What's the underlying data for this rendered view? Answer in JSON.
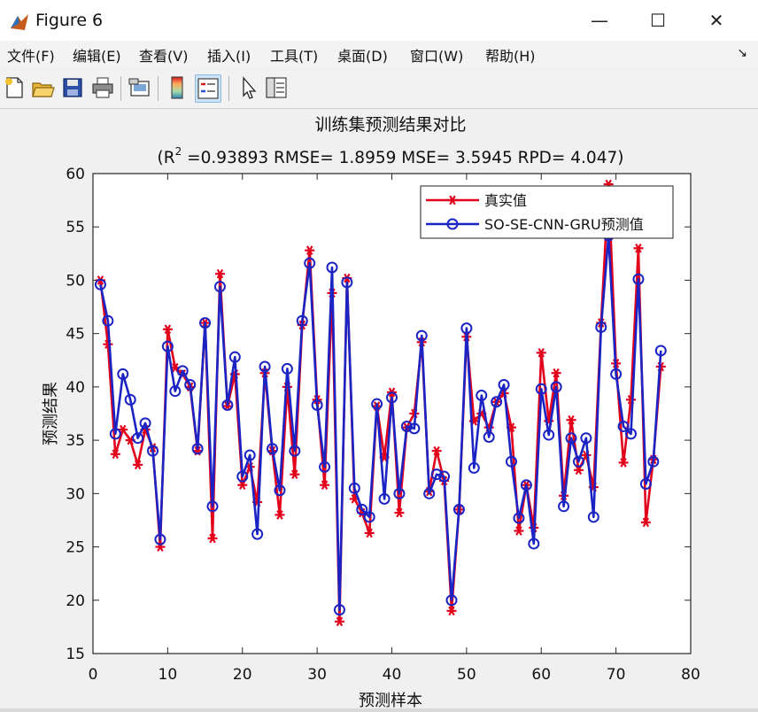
{
  "window": {
    "title": "Figure 6"
  },
  "menu": [
    "文件(F)",
    "编辑(E)",
    "查看(V)",
    "插入(I)",
    "工具(T)",
    "桌面(D)",
    "窗口(W)",
    "帮助(H)"
  ],
  "toolbar": [
    "new-figure-icon",
    "open-file-icon",
    "save-icon",
    "print-icon",
    "link-plot-icon",
    "colorbar-icon",
    "legend-icon",
    "pointer-icon",
    "property-inspector-icon"
  ],
  "chart_data": {
    "type": "line",
    "title": "训练集预测结果对比",
    "subtitle_prefix": "(R",
    "subtitle_sup": "2",
    "subtitle_rest": " =0.93893 RMSE= 1.8959 MSE= 3.5945 RPD= 4.047)",
    "xlabel": "预测样本",
    "ylabel": "预测结果",
    "xlim": [
      0,
      80
    ],
    "ylim": [
      15,
      60
    ],
    "xticks": [
      0,
      10,
      20,
      30,
      40,
      50,
      60,
      70,
      80
    ],
    "yticks": [
      15,
      20,
      25,
      30,
      35,
      40,
      45,
      50,
      55,
      60
    ],
    "legend_position": "top-right",
    "x": [
      1,
      2,
      3,
      4,
      5,
      6,
      7,
      8,
      9,
      10,
      11,
      12,
      13,
      14,
      15,
      16,
      17,
      18,
      19,
      20,
      21,
      22,
      23,
      24,
      25,
      26,
      27,
      28,
      29,
      30,
      31,
      32,
      33,
      34,
      35,
      36,
      37,
      38,
      39,
      40,
      41,
      42,
      43,
      44,
      45,
      46,
      47,
      48,
      49,
      50,
      51,
      52,
      53,
      54,
      55,
      56,
      57,
      58,
      59,
      60,
      61,
      62,
      63,
      64,
      65,
      66,
      67,
      68,
      69,
      70,
      71,
      72,
      73,
      74,
      75,
      76
    ],
    "series": [
      {
        "name": "真实值",
        "color": "#e3001b",
        "marker": "asterisk",
        "values": [
          50.0,
          44.0,
          33.7,
          36.0,
          35.0,
          32.7,
          36.0,
          34.3,
          25.0,
          45.4,
          41.8,
          41.2,
          40.0,
          34.0,
          46.0,
          25.8,
          50.6,
          38.2,
          41.2,
          30.8,
          32.5,
          29.2,
          41.3,
          34.0,
          28.0,
          40.0,
          31.8,
          45.8,
          52.8,
          38.8,
          30.8,
          48.8,
          18.0,
          50.2,
          29.5,
          28.2,
          26.3,
          38.2,
          33.4,
          39.5,
          28.2,
          36.2,
          37.5,
          44.2,
          30.2,
          34.0,
          31.2,
          19.0,
          28.5,
          44.7,
          36.8,
          37.5,
          36.2,
          38.6,
          39.4,
          36.2,
          26.5,
          30.8,
          26.8,
          43.2,
          36.8,
          41.3,
          29.8,
          36.9,
          32.2,
          33.6,
          30.6,
          46.0,
          59.0,
          42.2,
          32.9,
          38.8,
          53.0,
          27.3,
          33.2,
          41.9
        ]
      },
      {
        "name": "SO-SE-CNN-GRU预测值",
        "color": "#1a23c4",
        "marker": "circle",
        "values": [
          49.6,
          46.2,
          35.6,
          41.2,
          38.8,
          35.2,
          36.6,
          34.0,
          25.7,
          43.8,
          39.6,
          41.5,
          40.2,
          34.2,
          46.0,
          28.8,
          49.4,
          38.3,
          42.8,
          31.6,
          33.6,
          26.2,
          41.9,
          34.2,
          30.3,
          41.7,
          34.0,
          46.2,
          51.6,
          38.3,
          32.5,
          51.2,
          19.1,
          49.8,
          30.5,
          28.5,
          27.8,
          38.4,
          29.5,
          39.0,
          30.0,
          36.3,
          36.1,
          44.8,
          30.0,
          31.8,
          31.6,
          20.0,
          28.5,
          45.5,
          32.4,
          39.2,
          35.3,
          38.6,
          40.2,
          33.0,
          27.7,
          30.8,
          25.3,
          39.8,
          35.5,
          40.0,
          28.8,
          35.2,
          33.0,
          35.2,
          27.8,
          45.6,
          54.2,
          41.2,
          36.3,
          35.6,
          50.1,
          30.9,
          33.0,
          43.4
        ]
      }
    ]
  }
}
